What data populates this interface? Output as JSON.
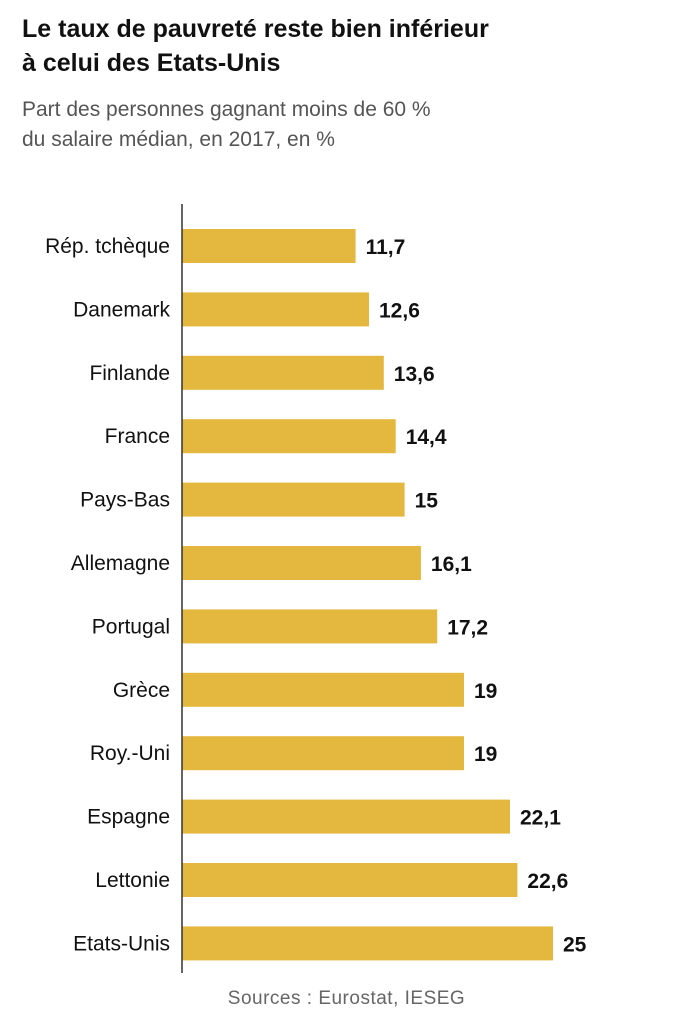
{
  "header": {
    "title_line1": "Le taux de pauvreté reste bien inférieur",
    "title_line2": "à celui des Etats-Unis",
    "subtitle_line1": "Part des personnes gagnant moins de 60 %",
    "subtitle_line2": "du salaire médian, en 2017, en %"
  },
  "source": "Sources : Eurostat, IESEG",
  "colors": {
    "bar": "#e4b73e",
    "axis": "#333333"
  },
  "chart_data": {
    "type": "bar",
    "orientation": "horizontal",
    "title": "Le taux de pauvreté reste bien inférieur à celui des Etats-Unis",
    "subtitle": "Part des personnes gagnant moins de 60 % du salaire médian, en 2017, en %",
    "categories": [
      "Rép. tchèque",
      "Danemark",
      "Finlande",
      "France",
      "Pays-Bas",
      "Allemagne",
      "Portugal",
      "Grèce",
      "Roy.-Uni",
      "Espagne",
      "Lettonie",
      "Etats-Unis"
    ],
    "values": [
      11.7,
      12.6,
      13.6,
      14.4,
      15,
      16.1,
      17.2,
      19,
      19,
      22.1,
      22.6,
      25
    ],
    "value_labels": [
      "11,7",
      "12,6",
      "13,6",
      "14,4",
      "15",
      "16,1",
      "17,2",
      "19",
      "19",
      "22,1",
      "22,6",
      "25"
    ],
    "xlim": [
      0,
      25
    ],
    "grid": false,
    "legend": "none"
  }
}
